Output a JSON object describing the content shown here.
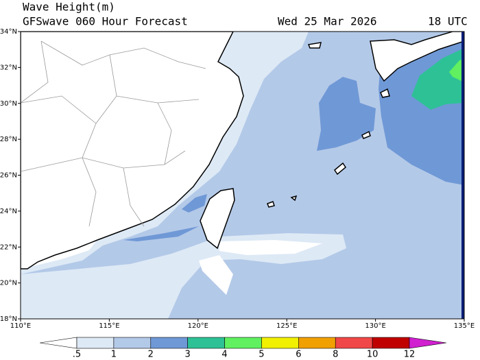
{
  "header": {
    "title": "Wave Height(m)",
    "subtitle": "GFSwave 060 Hour Forecast",
    "date": "Wed 25 Mar 2026",
    "time": "18 UTC"
  },
  "map": {
    "lonlim": [
      110,
      135
    ],
    "latlim": [
      18,
      34
    ],
    "lat_ticks": [
      {
        "value": 18,
        "label": "18°N"
      },
      {
        "value": 20,
        "label": "20°N"
      },
      {
        "value": 22,
        "label": "22°N"
      },
      {
        "value": 24,
        "label": "24°N"
      },
      {
        "value": 26,
        "label": "26°N"
      },
      {
        "value": 28,
        "label": "28°N"
      },
      {
        "value": 30,
        "label": "30°N"
      },
      {
        "value": 32,
        "label": "32°N"
      },
      {
        "value": 34,
        "label": "34°N"
      }
    ],
    "lon_ticks": [
      {
        "value": 110,
        "label": "110°E"
      },
      {
        "value": 115,
        "label": "115°E"
      },
      {
        "value": 120,
        "label": "120°E"
      },
      {
        "value": 125,
        "label": "125°E"
      },
      {
        "value": 130,
        "label": "130°E"
      },
      {
        "value": 135,
        "label": "135°E"
      }
    ]
  },
  "colorbar": {
    "levels": [
      {
        "value": 0.5,
        "label": ".5"
      },
      1,
      2,
      3,
      4,
      5,
      6,
      8,
      10,
      12
    ],
    "colors": [
      "#ffffff",
      "#dde9f5",
      "#b3c9e8",
      "#6f98d6",
      "#2ec196",
      "#60f060",
      "#f0f000",
      "#f0a000",
      "#f04848",
      "#c00000",
      "#d020d0"
    ]
  }
}
